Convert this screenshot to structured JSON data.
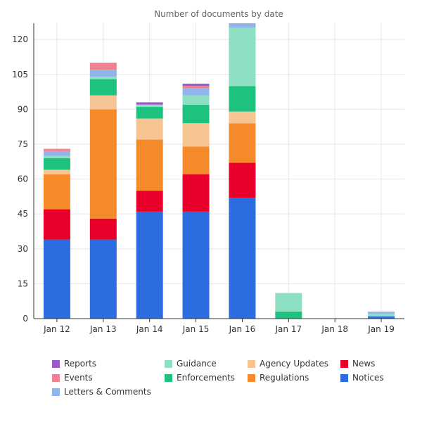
{
  "chart_data": {
    "type": "bar",
    "stacked": true,
    "title": "Number of documents by date",
    "xlabel": "",
    "ylabel": "",
    "categories": [
      "Jan 12",
      "Jan 13",
      "Jan 14",
      "Jan 15",
      "Jan 16",
      "Jan 17",
      "Jan 18",
      "Jan 19"
    ],
    "ylim": [
      0,
      127
    ],
    "yticks": [
      0,
      15,
      30,
      45,
      60,
      75,
      90,
      105,
      120
    ],
    "grid": true,
    "legend_position": "bottom",
    "series": [
      {
        "name": "Notices",
        "color": "#2b6de0",
        "values": [
          34,
          34,
          46,
          46,
          52,
          0,
          0,
          1
        ]
      },
      {
        "name": "News",
        "color": "#e8002b",
        "values": [
          13,
          9,
          9,
          16,
          15,
          0,
          0,
          0
        ]
      },
      {
        "name": "Regulations",
        "color": "#f58a2a",
        "values": [
          15,
          47,
          22,
          12,
          17,
          0,
          0,
          0
        ]
      },
      {
        "name": "Agency Updates",
        "color": "#f7c594",
        "values": [
          2,
          6,
          9,
          10,
          5,
          0,
          0,
          0
        ]
      },
      {
        "name": "Enforcements",
        "color": "#1cc27e",
        "values": [
          5,
          7,
          5,
          8,
          11,
          3,
          0,
          0
        ]
      },
      {
        "name": "Guidance",
        "color": "#8de0c2",
        "values": [
          1,
          1,
          1,
          4,
          25,
          8,
          0,
          1
        ]
      },
      {
        "name": "Letters & Comments",
        "color": "#91b5ea",
        "values": [
          2,
          3,
          0,
          3,
          3,
          0,
          0,
          1
        ]
      },
      {
        "name": "Events",
        "color": "#ef8292",
        "values": [
          1,
          3,
          0,
          1,
          0,
          0,
          0,
          0
        ]
      },
      {
        "name": "Reports",
        "color": "#9b59c9",
        "values": [
          0,
          0,
          1,
          1,
          0,
          0,
          0,
          0
        ]
      }
    ],
    "legend_order": [
      "Reports",
      "Guidance",
      "Agency Updates",
      "News",
      "Events",
      "Enforcements",
      "Regulations",
      "Notices",
      "Letters & Comments"
    ]
  }
}
